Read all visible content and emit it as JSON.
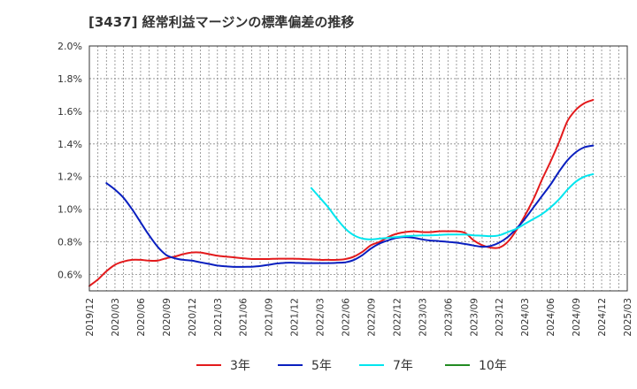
{
  "title": "[3437]  経常利益マージンの標準偏差の推移",
  "chart_data": {
    "type": "line",
    "title": "[3437]  経常利益マージンの標準偏差の推移",
    "xlabel": "",
    "ylabel": "",
    "ylim": [
      0.5,
      2.0
    ],
    "y_ticks": [
      "0.6%",
      "0.8%",
      "1.0%",
      "1.2%",
      "1.4%",
      "1.6%",
      "1.8%",
      "2.0%"
    ],
    "x_ticks": [
      "2019/12",
      "2020/03",
      "2020/06",
      "2020/09",
      "2020/12",
      "2021/03",
      "2021/06",
      "2021/09",
      "2021/12",
      "2022/03",
      "2022/06",
      "2022/09",
      "2022/12",
      "2023/03",
      "2023/06",
      "2023/09",
      "2023/12",
      "2024/03",
      "2024/06",
      "2024/09",
      "2024/12",
      "2025/03"
    ],
    "grid": true,
    "legend_position": "bottom",
    "series": [
      {
        "name": "3年",
        "color": "#e31a1c",
        "points": [
          [
            "2019/12",
            0.53
          ],
          [
            "2020/01",
            0.57
          ],
          [
            "2020/02",
            0.62
          ],
          [
            "2020/03",
            0.66
          ],
          [
            "2020/04",
            0.68
          ],
          [
            "2020/05",
            0.69
          ],
          [
            "2020/06",
            0.69
          ],
          [
            "2020/07",
            0.685
          ],
          [
            "2020/08",
            0.685
          ],
          [
            "2020/09",
            0.7
          ],
          [
            "2020/10",
            0.71
          ],
          [
            "2020/11",
            0.725
          ],
          [
            "2020/12",
            0.735
          ],
          [
            "2021/01",
            0.735
          ],
          [
            "2021/02",
            0.725
          ],
          [
            "2021/03",
            0.715
          ],
          [
            "2021/04",
            0.71
          ],
          [
            "2021/05",
            0.705
          ],
          [
            "2021/06",
            0.7
          ],
          [
            "2021/07",
            0.695
          ],
          [
            "2021/08",
            0.695
          ],
          [
            "2021/09",
            0.695
          ],
          [
            "2021/10",
            0.697
          ],
          [
            "2021/11",
            0.697
          ],
          [
            "2021/12",
            0.697
          ],
          [
            "2022/01",
            0.695
          ],
          [
            "2022/02",
            0.693
          ],
          [
            "2022/03",
            0.69
          ],
          [
            "2022/04",
            0.69
          ],
          [
            "2022/05",
            0.69
          ],
          [
            "2022/06",
            0.695
          ],
          [
            "2022/07",
            0.71
          ],
          [
            "2022/08",
            0.74
          ],
          [
            "2022/09",
            0.78
          ],
          [
            "2022/10",
            0.8
          ],
          [
            "2022/11",
            0.83
          ],
          [
            "2022/12",
            0.85
          ],
          [
            "2023/01",
            0.86
          ],
          [
            "2023/02",
            0.865
          ],
          [
            "2023/03",
            0.86
          ],
          [
            "2023/04",
            0.86
          ],
          [
            "2023/05",
            0.865
          ],
          [
            "2023/06",
            0.865
          ],
          [
            "2023/07",
            0.865
          ],
          [
            "2023/08",
            0.855
          ],
          [
            "2023/09",
            0.81
          ],
          [
            "2023/10",
            0.78
          ],
          [
            "2023/11",
            0.765
          ],
          [
            "2023/12",
            0.765
          ],
          [
            "2024/01",
            0.8
          ],
          [
            "2024/02",
            0.87
          ],
          [
            "2024/03",
            0.96
          ],
          [
            "2024/04",
            1.06
          ],
          [
            "2024/05",
            1.18
          ],
          [
            "2024/06",
            1.29
          ],
          [
            "2024/07",
            1.41
          ],
          [
            "2024/08",
            1.54
          ],
          [
            "2024/09",
            1.61
          ],
          [
            "2024/10",
            1.65
          ],
          [
            "2024/11",
            1.67
          ]
        ]
      },
      {
        "name": "5年",
        "color": "#0a1fbf",
        "points": [
          [
            "2020/02",
            1.16
          ],
          [
            "2020/03",
            1.12
          ],
          [
            "2020/04",
            1.07
          ],
          [
            "2020/05",
            1.0
          ],
          [
            "2020/06",
            0.92
          ],
          [
            "2020/07",
            0.84
          ],
          [
            "2020/08",
            0.77
          ],
          [
            "2020/09",
            0.72
          ],
          [
            "2020/10",
            0.7
          ],
          [
            "2020/11",
            0.69
          ],
          [
            "2020/12",
            0.685
          ],
          [
            "2021/01",
            0.675
          ],
          [
            "2021/02",
            0.665
          ],
          [
            "2021/03",
            0.655
          ],
          [
            "2021/04",
            0.65
          ],
          [
            "2021/05",
            0.647
          ],
          [
            "2021/06",
            0.647
          ],
          [
            "2021/07",
            0.648
          ],
          [
            "2021/08",
            0.652
          ],
          [
            "2021/09",
            0.66
          ],
          [
            "2021/10",
            0.668
          ],
          [
            "2021/11",
            0.672
          ],
          [
            "2021/12",
            0.672
          ],
          [
            "2022/01",
            0.67
          ],
          [
            "2022/02",
            0.67
          ],
          [
            "2022/03",
            0.67
          ],
          [
            "2022/04",
            0.67
          ],
          [
            "2022/05",
            0.672
          ],
          [
            "2022/06",
            0.675
          ],
          [
            "2022/07",
            0.69
          ],
          [
            "2022/08",
            0.72
          ],
          [
            "2022/09",
            0.76
          ],
          [
            "2022/10",
            0.79
          ],
          [
            "2022/11",
            0.81
          ],
          [
            "2022/12",
            0.825
          ],
          [
            "2023/01",
            0.83
          ],
          [
            "2023/02",
            0.825
          ],
          [
            "2023/03",
            0.815
          ],
          [
            "2023/04",
            0.808
          ],
          [
            "2023/05",
            0.805
          ],
          [
            "2023/06",
            0.8
          ],
          [
            "2023/07",
            0.795
          ],
          [
            "2023/08",
            0.787
          ],
          [
            "2023/09",
            0.778
          ],
          [
            "2023/10",
            0.77
          ],
          [
            "2023/11",
            0.775
          ],
          [
            "2023/12",
            0.795
          ],
          [
            "2024/01",
            0.83
          ],
          [
            "2024/02",
            0.88
          ],
          [
            "2024/03",
            0.94
          ],
          [
            "2024/04",
            1.01
          ],
          [
            "2024/05",
            1.08
          ],
          [
            "2024/06",
            1.15
          ],
          [
            "2024/07",
            1.23
          ],
          [
            "2024/08",
            1.3
          ],
          [
            "2024/09",
            1.35
          ],
          [
            "2024/10",
            1.38
          ],
          [
            "2024/11",
            1.39
          ]
        ]
      },
      {
        "name": "7年",
        "color": "#00e5ee",
        "points": [
          [
            "2022/02",
            1.13
          ],
          [
            "2022/03",
            1.07
          ],
          [
            "2022/04",
            1.01
          ],
          [
            "2022/05",
            0.94
          ],
          [
            "2022/06",
            0.88
          ],
          [
            "2022/07",
            0.84
          ],
          [
            "2022/08",
            0.82
          ],
          [
            "2022/09",
            0.815
          ],
          [
            "2022/10",
            0.82
          ],
          [
            "2022/11",
            0.825
          ],
          [
            "2022/12",
            0.83
          ],
          [
            "2023/01",
            0.835
          ],
          [
            "2023/02",
            0.838
          ],
          [
            "2023/03",
            0.84
          ],
          [
            "2023/04",
            0.84
          ],
          [
            "2023/05",
            0.843
          ],
          [
            "2023/06",
            0.845
          ],
          [
            "2023/07",
            0.845
          ],
          [
            "2023/08",
            0.845
          ],
          [
            "2023/09",
            0.84
          ],
          [
            "2023/10",
            0.838
          ],
          [
            "2023/11",
            0.835
          ],
          [
            "2023/12",
            0.84
          ],
          [
            "2024/01",
            0.86
          ],
          [
            "2024/02",
            0.88
          ],
          [
            "2024/03",
            0.91
          ],
          [
            "2024/04",
            0.94
          ],
          [
            "2024/05",
            0.97
          ],
          [
            "2024/06",
            1.01
          ],
          [
            "2024/07",
            1.06
          ],
          [
            "2024/08",
            1.12
          ],
          [
            "2024/09",
            1.17
          ],
          [
            "2024/10",
            1.2
          ],
          [
            "2024/11",
            1.215
          ]
        ]
      },
      {
        "name": "10年",
        "color": "#228b22",
        "points": []
      }
    ]
  }
}
